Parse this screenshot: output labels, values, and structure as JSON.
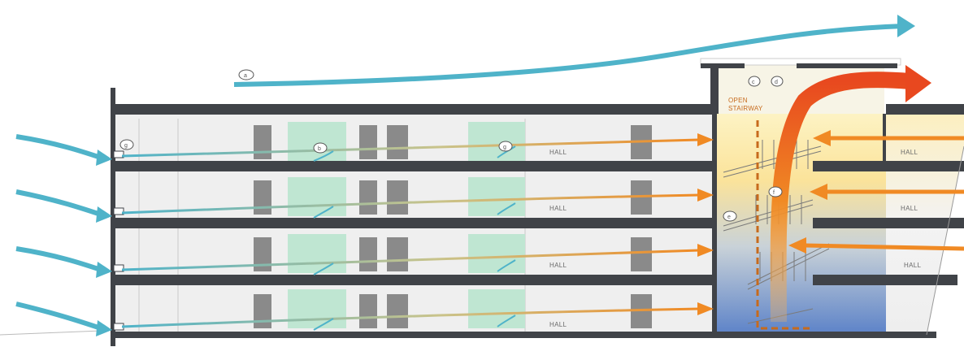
{
  "labels": {
    "hall": "HALL",
    "open": "OPEN",
    "stairway": "STAIRWAY"
  },
  "markers": {
    "a": "a",
    "b": "b",
    "c": "c",
    "d": "d",
    "e": "e",
    "f": "f",
    "g": "g"
  },
  "colors": {
    "wind": "#4fb3c9",
    "warm_air": "#f08a24",
    "hot_exhaust": "#e8481f",
    "slab": "#404348",
    "column": "#8a8a8a",
    "green_window": "#bfe6d2",
    "atrium_top": "#fbe9a2",
    "atrium_bottom": "#5c82c8"
  }
}
